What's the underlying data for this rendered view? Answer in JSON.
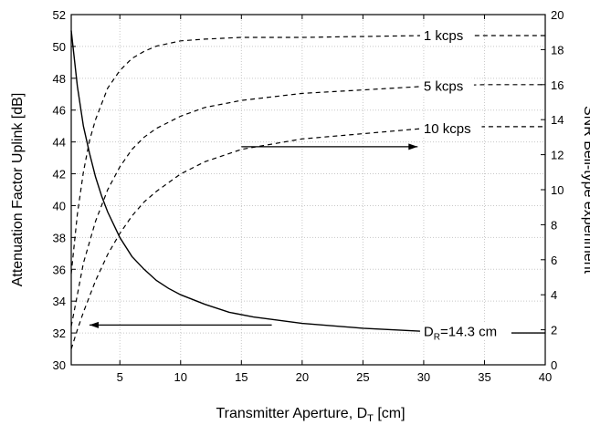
{
  "chart_data": {
    "type": "line",
    "xlabel": "Transmitter Aperture, D",
    "xlabel_subscript": "T",
    "xlabel_unit": "[cm]",
    "ylabel_left": "Attenuation Factor Uplink [dB]",
    "ylabel_right": "SNR Bell-type experiment",
    "xlim": [
      1,
      40
    ],
    "ylim_left": [
      30,
      52
    ],
    "ylim_right": [
      0,
      20
    ],
    "x_ticks": [
      "5",
      "10",
      "15",
      "20",
      "25",
      "30",
      "35",
      "40"
    ],
    "y_left_ticks": [
      "30",
      "32",
      "34",
      "36",
      "38",
      "40",
      "42",
      "44",
      "46",
      "48",
      "50",
      "52"
    ],
    "y_right_ticks": [
      "0",
      "2",
      "4",
      "6",
      "8",
      "10",
      "12",
      "14",
      "16",
      "18",
      "20"
    ],
    "grid": true,
    "series": [
      {
        "name": "D_R=14.3 cm",
        "axis": "left",
        "style": "solid",
        "x": [
          1,
          1.5,
          2,
          2.5,
          3,
          3.5,
          4,
          5,
          6,
          7,
          8,
          9,
          10,
          12,
          14,
          16,
          18,
          20,
          25,
          30,
          35,
          40
        ],
        "y": [
          51.0,
          47.5,
          45.0,
          43.3,
          41.8,
          40.6,
          39.6,
          38.0,
          36.8,
          36.0,
          35.3,
          34.8,
          34.4,
          33.8,
          33.3,
          33.0,
          32.8,
          32.6,
          32.3,
          32.1,
          32.0,
          32.0
        ]
      },
      {
        "name": "1 kcps",
        "axis": "right",
        "style": "dashed",
        "x": [
          1,
          1.5,
          2,
          2.5,
          3,
          4,
          5,
          6,
          7,
          8,
          10,
          12,
          15,
          20,
          25,
          30,
          35,
          40
        ],
        "y": [
          5.2,
          8.6,
          11.0,
          12.8,
          14.0,
          15.8,
          16.8,
          17.5,
          17.9,
          18.2,
          18.5,
          18.6,
          18.7,
          18.7,
          18.75,
          18.8,
          18.8,
          18.8
        ]
      },
      {
        "name": "5 kcps",
        "axis": "right",
        "style": "dashed",
        "x": [
          1,
          1.5,
          2,
          3,
          4,
          5,
          6,
          7,
          8,
          10,
          12,
          15,
          20,
          25,
          30,
          35,
          40
        ],
        "y": [
          2.2,
          4.0,
          5.8,
          8.2,
          10.0,
          11.3,
          12.3,
          13.0,
          13.5,
          14.2,
          14.7,
          15.1,
          15.5,
          15.7,
          15.9,
          16.0,
          16.0
        ]
      },
      {
        "name": "10 kcps",
        "axis": "right",
        "style": "dashed",
        "x": [
          1,
          1.5,
          2,
          3,
          4,
          5,
          6,
          7,
          8,
          10,
          12,
          15,
          20,
          25,
          30,
          35,
          40
        ],
        "y": [
          0.9,
          2.0,
          3.0,
          4.8,
          6.3,
          7.5,
          8.5,
          9.3,
          9.9,
          10.9,
          11.6,
          12.3,
          12.9,
          13.2,
          13.5,
          13.6,
          13.6
        ]
      }
    ],
    "annotations": [
      {
        "text": "1 kcps",
        "x": 30,
        "y_right": 18.8
      },
      {
        "text": "5 kcps",
        "x": 30,
        "y_right": 15.9
      },
      {
        "text": "10 kcps",
        "x": 30,
        "y_right": 13.5
      },
      {
        "text": "D",
        "sub": "R",
        "rest": "=14.3 cm",
        "x": 30,
        "y_left": 32.1
      }
    ],
    "arrows": [
      {
        "direction": "right",
        "target_axis": "right",
        "x_from": 15,
        "x_to": 29.5,
        "y_left": 43.7
      },
      {
        "direction": "left",
        "target_axis": "left",
        "x_from": 17.5,
        "x_to": 2.5,
        "y_left": 32.5
      }
    ]
  }
}
